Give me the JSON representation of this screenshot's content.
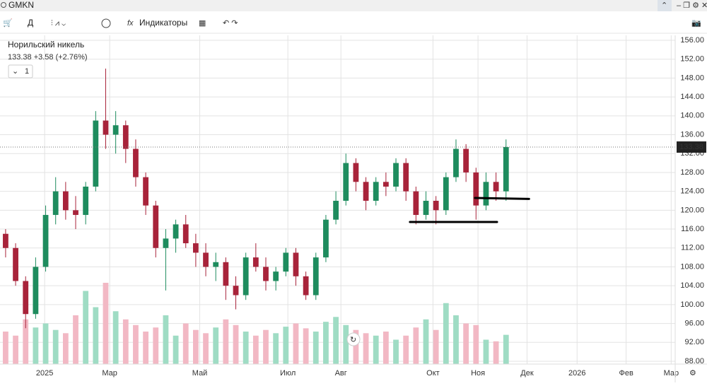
{
  "toolbar": {
    "ticker": "GMKN",
    "interval": "Д",
    "indicators": "Индикаторы"
  },
  "header": {
    "name": "Норильский никель",
    "quote": "133.38 +3.58 (+2.76%)",
    "legend_button": "1"
  },
  "chart_data": {
    "type": "candlestick",
    "x": [
      0,
      1,
      2,
      3,
      4,
      5,
      6,
      7,
      8,
      9,
      10,
      11,
      12,
      13,
      14,
      15,
      16,
      17,
      18,
      19,
      20,
      21,
      22,
      23,
      24,
      25,
      26,
      27,
      28,
      29,
      30,
      31,
      32,
      33,
      34,
      35,
      36,
      37,
      38,
      39,
      40,
      41,
      42,
      43,
      44,
      45,
      46,
      47,
      48,
      49,
      50
    ],
    "open": [
      115,
      112,
      105,
      98,
      108,
      119,
      124,
      120,
      119,
      125,
      139,
      136,
      138,
      133,
      127,
      121,
      112,
      114,
      117,
      113,
      111,
      108,
      109,
      104,
      102,
      110,
      108,
      105,
      107,
      111,
      106,
      102,
      110,
      118,
      122,
      130,
      126,
      122,
      126,
      125,
      130,
      124,
      119,
      122,
      120,
      127,
      133,
      128,
      121,
      126,
      124
    ],
    "high": [
      116,
      113,
      106,
      110,
      121,
      127,
      126,
      123,
      126,
      141,
      150,
      141,
      139,
      135,
      128,
      122,
      116,
      118,
      119,
      115,
      113,
      111,
      110,
      106,
      111,
      113,
      110,
      108,
      112,
      112,
      107,
      111,
      119,
      124,
      132,
      131,
      127,
      127,
      128,
      131,
      131,
      125,
      124,
      123,
      128,
      135,
      134,
      129,
      128,
      128,
      135
    ],
    "low": [
      110,
      104,
      95,
      97,
      107,
      117,
      118,
      116,
      117,
      124,
      133,
      132,
      130,
      125,
      119,
      110,
      103,
      111,
      112,
      108,
      106,
      105,
      101,
      99,
      101,
      107,
      103,
      103,
      106,
      104,
      101,
      101,
      109,
      117,
      121,
      124,
      120,
      121,
      123,
      124,
      122,
      117,
      118,
      117,
      119,
      126,
      126,
      118,
      120,
      122,
      122
    ],
    "close": [
      112,
      105,
      98,
      108,
      119,
      124,
      120,
      119,
      125,
      139,
      136,
      138,
      133,
      127,
      121,
      112,
      114,
      117,
      113,
      111,
      108,
      109,
      104,
      102,
      110,
      108,
      105,
      107,
      111,
      106,
      102,
      110,
      118,
      122,
      130,
      126,
      122,
      126,
      125,
      130,
      124,
      119,
      122,
      120,
      127,
      133,
      128,
      121,
      126,
      124,
      133.38
    ],
    "volume": [
      40,
      35,
      55,
      45,
      50,
      42,
      38,
      60,
      90,
      70,
      100,
      65,
      55,
      48,
      40,
      45,
      60,
      35,
      50,
      42,
      38,
      45,
      55,
      48,
      40,
      35,
      42,
      38,
      46,
      50,
      44,
      40,
      52,
      58,
      48,
      42,
      38,
      35,
      40,
      30,
      35,
      45,
      55,
      42,
      75,
      60,
      50,
      48,
      30,
      28,
      36
    ],
    "up_color": "#1e8c5e",
    "down_color": "#a8233a",
    "up_volume_color": "#9fdcc4",
    "down_volume_color": "#f2b8c4",
    "xlim": [
      -0.56,
      66.9
    ],
    "xticks": [
      {
        "value": 3.9,
        "label": "2025"
      },
      {
        "value": 10.4,
        "label": "Мар"
      },
      {
        "value": 19.4,
        "label": "Май"
      },
      {
        "value": 28.2,
        "label": "Июл"
      },
      {
        "value": 33.5,
        "label": "Авг"
      },
      {
        "value": 42.7,
        "label": "Окт"
      },
      {
        "value": 47.2,
        "label": "Ноя"
      },
      {
        "value": 52.1,
        "label": "Дек"
      },
      {
        "value": 57.1,
        "label": "2026"
      },
      {
        "value": 62.0,
        "label": "Фев"
      },
      {
        "value": 66.5,
        "label": "Мар"
      }
    ],
    "ylim": [
      87.4,
      157.05
    ],
    "yticks": [
      {
        "value": 88,
        "label": "88.00"
      },
      {
        "value": 92,
        "label": "92.00"
      },
      {
        "value": 96,
        "label": "96.00"
      },
      {
        "value": 100,
        "label": "100.00"
      },
      {
        "value": 104,
        "label": "104.00"
      },
      {
        "value": 108,
        "label": "108.00"
      },
      {
        "value": 112,
        "label": "112.00"
      },
      {
        "value": 116,
        "label": "116.00"
      },
      {
        "value": 120,
        "label": "120.00"
      },
      {
        "value": 124,
        "label": "124.00"
      },
      {
        "value": 128,
        "label": "128.00"
      },
      {
        "value": 132,
        "label": "132.00"
      },
      {
        "value": 136,
        "label": "136.00"
      },
      {
        "value": 140,
        "label": "140.00"
      },
      {
        "value": 144,
        "label": "144.00"
      },
      {
        "value": 148,
        "label": "148.00"
      },
      {
        "value": 152,
        "label": "152.00"
      },
      {
        "value": 156,
        "label": "156.00"
      }
    ],
    "y2lim": [
      0,
      100
    ],
    "grid": true,
    "support_lines": [
      {
        "x": [
          40.4,
          49.1
        ],
        "y": [
          117.5,
          117.5
        ]
      },
      {
        "x": [
          46.9,
          52.3
        ],
        "y": [
          122.6,
          122.4
        ]
      }
    ]
  }
}
